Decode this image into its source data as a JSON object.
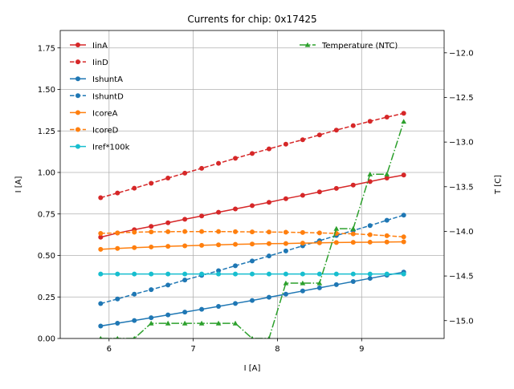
{
  "chart_data": {
    "type": "line",
    "title": "Currents for chip: 0x17425",
    "xlabel": "I [A]",
    "ylabel": "I [A]",
    "y2label": "T [C]",
    "xlim": [
      5.42,
      9.98
    ],
    "ylim": [
      0.0,
      1.855
    ],
    "y2lim": [
      -15.2,
      -11.75
    ],
    "xticks": [
      6,
      7,
      8,
      9
    ],
    "yticks": [
      0.0,
      0.25,
      0.5,
      0.75,
      1.0,
      1.25,
      1.5,
      1.75
    ],
    "yticklabels": [
      "0.00",
      "0.25",
      "0.50",
      "0.75",
      "1.00",
      "1.25",
      "1.50",
      "1.75"
    ],
    "y2ticks": [
      -15.0,
      -14.5,
      -14.0,
      -13.5,
      -13.0,
      -12.5,
      -12.0
    ],
    "y2ticklabels": [
      "−15.0",
      "−14.5",
      "−14.0",
      "−13.5",
      "−13.0",
      "−12.5",
      "−12.0"
    ],
    "grid": true,
    "legend_left_placement": "top-left",
    "legend_right_placement": "top-right",
    "x": [
      5.9,
      6.1,
      6.3,
      6.5,
      6.7,
      6.9,
      7.1,
      7.3,
      7.5,
      7.7,
      7.9,
      8.1,
      8.3,
      8.5,
      8.7,
      8.9,
      9.1,
      9.3,
      9.5
    ],
    "series": [
      {
        "name": "IinA",
        "axis": "left",
        "color": "#d62728",
        "linestyle": "solid",
        "marker": "circle",
        "values": [
          0.61,
          0.635,
          0.655,
          0.675,
          0.697,
          0.718,
          0.738,
          0.76,
          0.78,
          0.8,
          0.82,
          0.842,
          0.862,
          0.883,
          0.904,
          0.924,
          0.945,
          0.966,
          0.984
        ]
      },
      {
        "name": "IinD",
        "axis": "left",
        "color": "#d62728",
        "linestyle": "dashed",
        "marker": "circle",
        "values": [
          0.848,
          0.876,
          0.905,
          0.935,
          0.966,
          0.996,
          1.025,
          1.055,
          1.085,
          1.114,
          1.142,
          1.17,
          1.197,
          1.226,
          1.255,
          1.282,
          1.308,
          1.333,
          1.356
        ]
      },
      {
        "name": "IshuntA",
        "axis": "left",
        "color": "#1f77b4",
        "linestyle": "solid",
        "marker": "circle",
        "values": [
          0.075,
          0.092,
          0.108,
          0.125,
          0.142,
          0.159,
          0.176,
          0.193,
          0.211,
          0.229,
          0.248,
          0.267,
          0.286,
          0.305,
          0.324,
          0.343,
          0.362,
          0.381,
          0.4
        ]
      },
      {
        "name": "IshuntD",
        "axis": "left",
        "color": "#1f77b4",
        "linestyle": "dashed",
        "marker": "circle",
        "values": [
          0.21,
          0.238,
          0.267,
          0.294,
          0.322,
          0.352,
          0.38,
          0.408,
          0.438,
          0.467,
          0.497,
          0.527,
          0.558,
          0.589,
          0.62,
          0.65,
          0.68,
          0.712,
          0.743
        ]
      },
      {
        "name": "IcoreA",
        "axis": "left",
        "color": "#ff7f0e",
        "linestyle": "solid",
        "marker": "circle",
        "values": [
          0.537,
          0.542,
          0.547,
          0.551,
          0.555,
          0.558,
          0.561,
          0.564,
          0.567,
          0.569,
          0.571,
          0.572,
          0.574,
          0.576,
          0.578,
          0.579,
          0.58,
          0.581,
          0.582
        ]
      },
      {
        "name": "IcoreD",
        "axis": "left",
        "color": "#ff7f0e",
        "linestyle": "dashed",
        "marker": "circle",
        "values": [
          0.633,
          0.636,
          0.64,
          0.642,
          0.643,
          0.644,
          0.644,
          0.644,
          0.643,
          0.642,
          0.641,
          0.64,
          0.638,
          0.636,
          0.633,
          0.63,
          0.625,
          0.619,
          0.612
        ]
      },
      {
        "name": "Iref*100k",
        "axis": "left",
        "color": "#17becf",
        "linestyle": "solid",
        "marker": "circle",
        "values": [
          0.388,
          0.388,
          0.388,
          0.388,
          0.388,
          0.388,
          0.388,
          0.388,
          0.388,
          0.388,
          0.388,
          0.388,
          0.388,
          0.388,
          0.388,
          0.388,
          0.388,
          0.388,
          0.388
        ]
      },
      {
        "name": "Temperature (NTC)",
        "axis": "right",
        "color": "#2ca02c",
        "linestyle": "dashdot",
        "marker": "triangle",
        "values": [
          -15.2,
          -15.2,
          -15.2,
          -15.03,
          -15.03,
          -15.03,
          -15.03,
          -15.03,
          -15.03,
          -15.2,
          -15.2,
          -14.58,
          -14.58,
          -14.58,
          -13.97,
          -13.97,
          -13.36,
          -13.36,
          -12.77
        ]
      }
    ]
  }
}
